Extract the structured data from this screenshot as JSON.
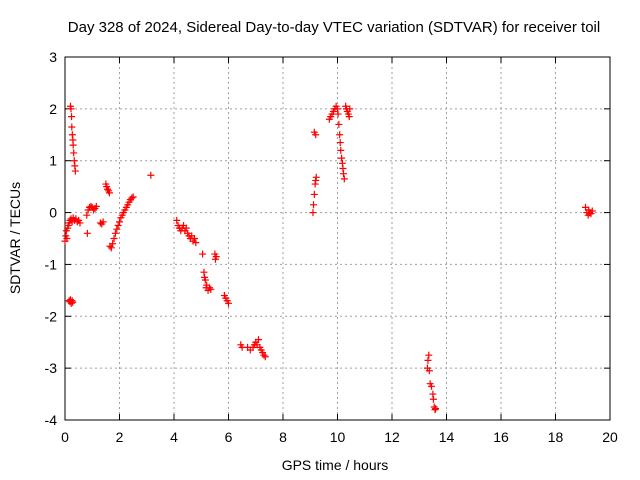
{
  "chart_data": {
    "type": "scatter",
    "title": "Day 328 of 2024, Sidereal Day-to-day VTEC variation (SDTVAR) for receiver toil",
    "xlabel": "GPS time / hours",
    "ylabel": "SDTVAR / TECUs",
    "xlim": [
      0,
      20
    ],
    "ylim": [
      -4,
      3
    ],
    "xticks": [
      0,
      2,
      4,
      6,
      8,
      10,
      12,
      14,
      16,
      18,
      20
    ],
    "yticks": [
      -4,
      -3,
      -2,
      -1,
      0,
      1,
      2,
      3
    ],
    "grid": true,
    "marker": "+",
    "color": "#ff0000",
    "series": [
      {
        "name": "SDTVAR",
        "points": [
          [
            0.0,
            -0.55
          ],
          [
            0.03,
            -0.45
          ],
          [
            0.05,
            -0.35
          ],
          [
            0.07,
            -0.5
          ],
          [
            0.1,
            -0.3
          ],
          [
            0.12,
            -0.25
          ],
          [
            0.15,
            -0.2
          ],
          [
            0.18,
            -0.15
          ],
          [
            0.22,
            -0.12
          ],
          [
            0.26,
            -0.18
          ],
          [
            0.3,
            -0.1
          ],
          [
            0.35,
            -0.15
          ],
          [
            0.4,
            -0.12
          ],
          [
            0.45,
            -0.18
          ],
          [
            0.5,
            -0.15
          ],
          [
            0.55,
            -0.2
          ],
          [
            0.15,
            -1.7
          ],
          [
            0.18,
            -1.72
          ],
          [
            0.2,
            -1.68
          ],
          [
            0.23,
            -1.75
          ],
          [
            0.26,
            -1.7
          ],
          [
            0.28,
            -1.73
          ],
          [
            0.2,
            2.05
          ],
          [
            0.22,
            2.0
          ],
          [
            0.24,
            1.85
          ],
          [
            0.25,
            1.65
          ],
          [
            0.27,
            1.5
          ],
          [
            0.29,
            1.4
          ],
          [
            0.3,
            1.3
          ],
          [
            0.32,
            1.15
          ],
          [
            0.34,
            1.0
          ],
          [
            0.36,
            0.9
          ],
          [
            0.38,
            0.8
          ],
          [
            0.8,
            -0.05
          ],
          [
            0.82,
            -0.4
          ],
          [
            0.85,
            0.05
          ],
          [
            0.9,
            0.1
          ],
          [
            0.95,
            0.12
          ],
          [
            1.0,
            0.1
          ],
          [
            1.05,
            0.05
          ],
          [
            1.1,
            0.08
          ],
          [
            1.15,
            0.12
          ],
          [
            1.3,
            -0.2
          ],
          [
            1.35,
            -0.22
          ],
          [
            1.4,
            -0.18
          ],
          [
            1.5,
            0.55
          ],
          [
            1.53,
            0.5
          ],
          [
            1.56,
            0.45
          ],
          [
            1.6,
            0.42
          ],
          [
            1.63,
            0.38
          ],
          [
            1.65,
            -0.65
          ],
          [
            1.7,
            -0.68
          ],
          [
            1.75,
            -0.6
          ],
          [
            1.8,
            -0.5
          ],
          [
            1.85,
            -0.4
          ],
          [
            1.9,
            -0.32
          ],
          [
            1.95,
            -0.25
          ],
          [
            2.0,
            -0.18
          ],
          [
            2.05,
            -0.1
          ],
          [
            2.1,
            -0.05
          ],
          [
            2.15,
            0.0
          ],
          [
            2.2,
            0.05
          ],
          [
            2.25,
            0.1
          ],
          [
            2.3,
            0.15
          ],
          [
            2.35,
            0.2
          ],
          [
            2.4,
            0.25
          ],
          [
            2.45,
            0.28
          ],
          [
            2.5,
            0.3
          ],
          [
            3.15,
            0.72
          ],
          [
            4.1,
            -0.15
          ],
          [
            4.15,
            -0.25
          ],
          [
            4.2,
            -0.3
          ],
          [
            4.25,
            -0.35
          ],
          [
            4.3,
            -0.3
          ],
          [
            4.35,
            -0.25
          ],
          [
            4.4,
            -0.35
          ],
          [
            4.45,
            -0.3
          ],
          [
            4.5,
            -0.4
          ],
          [
            4.55,
            -0.45
          ],
          [
            4.6,
            -0.5
          ],
          [
            4.65,
            -0.45
          ],
          [
            4.7,
            -0.55
          ],
          [
            4.75,
            -0.5
          ],
          [
            4.8,
            -0.58
          ],
          [
            5.05,
            -0.8
          ],
          [
            5.1,
            -1.15
          ],
          [
            5.12,
            -1.25
          ],
          [
            5.15,
            -1.3
          ],
          [
            5.18,
            -1.45
          ],
          [
            5.2,
            -1.4
          ],
          [
            5.25,
            -1.5
          ],
          [
            5.3,
            -1.45
          ],
          [
            5.35,
            -1.48
          ],
          [
            5.5,
            -0.8
          ],
          [
            5.52,
            -0.9
          ],
          [
            5.55,
            -0.85
          ],
          [
            5.85,
            -1.6
          ],
          [
            5.9,
            -1.65
          ],
          [
            5.95,
            -1.7
          ],
          [
            6.0,
            -1.75
          ],
          [
            6.45,
            -2.55
          ],
          [
            6.5,
            -2.6
          ],
          [
            6.7,
            -2.6
          ],
          [
            6.8,
            -2.65
          ],
          [
            6.9,
            -2.6
          ],
          [
            6.95,
            -2.55
          ],
          [
            7.0,
            -2.5
          ],
          [
            7.05,
            -2.55
          ],
          [
            7.1,
            -2.45
          ],
          [
            7.15,
            -2.6
          ],
          [
            7.2,
            -2.65
          ],
          [
            7.25,
            -2.7
          ],
          [
            7.3,
            -2.75
          ],
          [
            7.35,
            -2.78
          ],
          [
            9.1,
            0.0
          ],
          [
            9.12,
            0.15
          ],
          [
            9.15,
            0.35
          ],
          [
            9.18,
            0.55
          ],
          [
            9.2,
            0.62
          ],
          [
            9.22,
            0.68
          ],
          [
            9.15,
            1.55
          ],
          [
            9.2,
            1.5
          ],
          [
            9.7,
            1.8
          ],
          [
            9.75,
            1.85
          ],
          [
            9.8,
            1.9
          ],
          [
            9.85,
            1.95
          ],
          [
            9.9,
            2.0
          ],
          [
            9.95,
            2.05
          ],
          [
            10.0,
            2.0
          ],
          [
            10.02,
            1.9
          ],
          [
            10.05,
            1.7
          ],
          [
            10.08,
            1.5
          ],
          [
            10.1,
            1.35
          ],
          [
            10.12,
            1.2
          ],
          [
            10.15,
            1.05
          ],
          [
            10.18,
            0.95
          ],
          [
            10.2,
            0.85
          ],
          [
            10.22,
            0.75
          ],
          [
            10.25,
            0.65
          ],
          [
            10.3,
            2.05
          ],
          [
            10.33,
            2.0
          ],
          [
            10.36,
            1.95
          ],
          [
            10.4,
            1.9
          ],
          [
            10.43,
            1.85
          ],
          [
            10.45,
            2.0
          ],
          [
            13.3,
            -3.0
          ],
          [
            13.32,
            -2.85
          ],
          [
            13.35,
            -2.75
          ],
          [
            13.37,
            -3.05
          ],
          [
            13.4,
            -3.3
          ],
          [
            13.45,
            -3.35
          ],
          [
            13.5,
            -3.5
          ],
          [
            13.52,
            -3.6
          ],
          [
            13.55,
            -3.75
          ],
          [
            13.58,
            -3.8
          ],
          [
            13.6,
            -3.78
          ],
          [
            19.1,
            0.1
          ],
          [
            19.15,
            0.0
          ],
          [
            19.2,
            -0.05
          ],
          [
            19.22,
            0.05
          ],
          [
            19.25,
            0.0
          ],
          [
            19.3,
            -0.02
          ],
          [
            19.35,
            0.03
          ]
        ]
      }
    ]
  }
}
